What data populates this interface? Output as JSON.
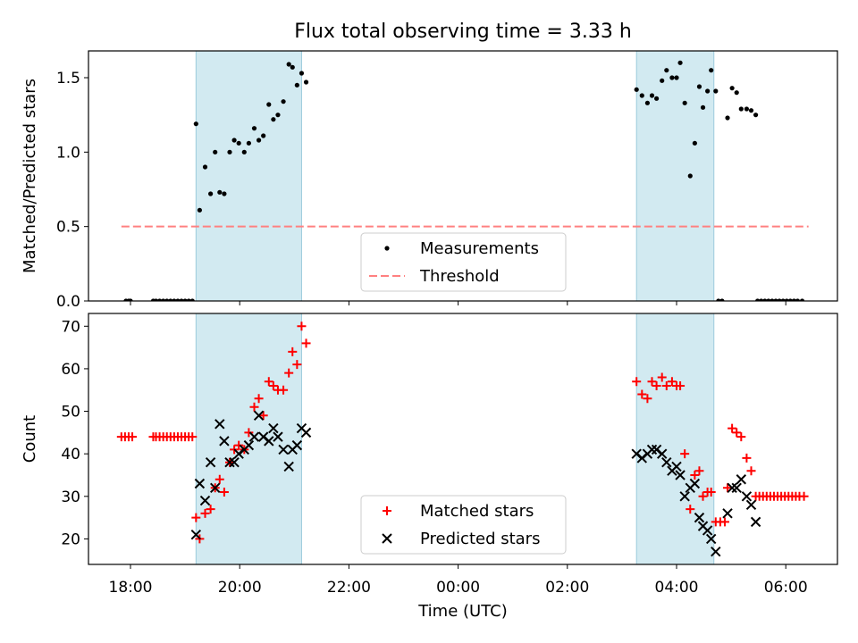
{
  "title": "Flux total observing time = 3.33 h",
  "xlabel": "Time (UTC)",
  "chart_data": [
    {
      "type": "scatter",
      "ylabel": "Matched/Predicted stars",
      "ylim": [
        0,
        1.68
      ],
      "yticks": [
        0.0,
        0.5,
        1.0,
        1.5
      ],
      "ytick_labels": [
        "0.0",
        "0.5",
        "1.0",
        "1.5"
      ],
      "shaded_intervals": [
        [
          "19:12",
          "21:08"
        ],
        [
          "03:16",
          "04:41"
        ]
      ],
      "series": [
        {
          "name": "Measurements",
          "marker": "dot",
          "color": "#000000",
          "points": [
            [
              "17:55",
              0
            ],
            [
              "17:58",
              0
            ],
            [
              "18:00",
              0
            ],
            [
              "18:25",
              0
            ],
            [
              "18:28",
              0
            ],
            [
              "18:32",
              0
            ],
            [
              "18:36",
              0
            ],
            [
              "18:40",
              0
            ],
            [
              "18:44",
              0
            ],
            [
              "18:48",
              0
            ],
            [
              "18:52",
              0
            ],
            [
              "18:56",
              0
            ],
            [
              "19:00",
              0
            ],
            [
              "19:04",
              0
            ],
            [
              "19:08",
              0
            ],
            [
              "19:12",
              1.19
            ],
            [
              "19:16",
              0.61
            ],
            [
              "19:22",
              0.9
            ],
            [
              "19:28",
              0.72
            ],
            [
              "19:33",
              1.0
            ],
            [
              "19:38",
              0.73
            ],
            [
              "19:43",
              0.72
            ],
            [
              "19:49",
              1.0
            ],
            [
              "19:54",
              1.08
            ],
            [
              "19:59",
              1.06
            ],
            [
              "20:05",
              1.0
            ],
            [
              "20:10",
              1.06
            ],
            [
              "20:16",
              1.16
            ],
            [
              "20:21",
              1.08
            ],
            [
              "20:26",
              1.11
            ],
            [
              "20:32",
              1.32
            ],
            [
              "20:37",
              1.22
            ],
            [
              "20:42",
              1.25
            ],
            [
              "20:48",
              1.34
            ],
            [
              "20:54",
              1.59
            ],
            [
              "20:58",
              1.57
            ],
            [
              "21:03",
              1.45
            ],
            [
              "21:08",
              1.53
            ],
            [
              "21:13",
              1.47
            ],
            [
              "03:16",
              1.42
            ],
            [
              "03:22",
              1.38
            ],
            [
              "03:28",
              1.33
            ],
            [
              "03:33",
              1.38
            ],
            [
              "03:38",
              1.36
            ],
            [
              "03:44",
              1.48
            ],
            [
              "03:49",
              1.55
            ],
            [
              "03:55",
              1.5
            ],
            [
              "04:00",
              1.5
            ],
            [
              "04:04",
              1.6
            ],
            [
              "04:09",
              1.33
            ],
            [
              "04:15",
              0.84
            ],
            [
              "04:20",
              1.06
            ],
            [
              "04:25",
              1.44
            ],
            [
              "04:29",
              1.3
            ],
            [
              "04:34",
              1.41
            ],
            [
              "04:38",
              1.55
            ],
            [
              "04:43",
              1.41
            ],
            [
              "04:46",
              0
            ],
            [
              "04:50",
              0
            ],
            [
              "04:56",
              1.23
            ],
            [
              "05:01",
              1.43
            ],
            [
              "05:06",
              1.4
            ],
            [
              "05:11",
              1.29
            ],
            [
              "05:17",
              1.29
            ],
            [
              "05:22",
              1.28
            ],
            [
              "05:27",
              1.25
            ],
            [
              "05:29",
              0
            ],
            [
              "05:33",
              0
            ],
            [
              "05:37",
              0
            ],
            [
              "05:41",
              0
            ],
            [
              "05:45",
              0
            ],
            [
              "05:49",
              0
            ],
            [
              "05:53",
              0
            ],
            [
              "05:57",
              0
            ],
            [
              "06:01",
              0
            ],
            [
              "06:05",
              0
            ],
            [
              "06:09",
              0
            ],
            [
              "06:13",
              0
            ],
            [
              "06:18",
              0
            ]
          ]
        },
        {
          "name": "Threshold",
          "marker": "dashed-line",
          "color": "#ff8080",
          "points": [
            [
              "17:50",
              0.5
            ],
            [
              "06:25",
              0.5
            ]
          ]
        }
      ],
      "legend": "lower-center"
    },
    {
      "type": "scatter",
      "ylabel": "Count",
      "ylim": [
        14,
        73
      ],
      "yticks": [
        20,
        30,
        40,
        50,
        60,
        70
      ],
      "ytick_labels": [
        "20",
        "30",
        "40",
        "50",
        "60",
        "70"
      ],
      "xticks": [
        "18:00",
        "20:00",
        "22:00",
        "00:00",
        "02:00",
        "04:00",
        "06:00"
      ],
      "shaded_intervals": [
        [
          "19:12",
          "21:08"
        ],
        [
          "03:16",
          "04:41"
        ]
      ],
      "series": [
        {
          "name": "Matched stars",
          "marker": "plus",
          "color": "#ff0000",
          "points": [
            [
              "17:50",
              44
            ],
            [
              "17:54",
              44
            ],
            [
              "17:58",
              44
            ],
            [
              "18:02",
              44
            ],
            [
              "18:25",
              44
            ],
            [
              "18:28",
              44
            ],
            [
              "18:32",
              44
            ],
            [
              "18:36",
              44
            ],
            [
              "18:40",
              44
            ],
            [
              "18:44",
              44
            ],
            [
              "18:48",
              44
            ],
            [
              "18:52",
              44
            ],
            [
              "18:56",
              44
            ],
            [
              "19:00",
              44
            ],
            [
              "19:04",
              44
            ],
            [
              "19:08",
              44
            ],
            [
              "19:12",
              25
            ],
            [
              "19:16",
              20
            ],
            [
              "19:22",
              26
            ],
            [
              "19:28",
              27
            ],
            [
              "19:33",
              32
            ],
            [
              "19:38",
              34
            ],
            [
              "19:43",
              31
            ],
            [
              "19:49",
              38
            ],
            [
              "19:54",
              41
            ],
            [
              "19:59",
              42
            ],
            [
              "20:05",
              41
            ],
            [
              "20:10",
              45
            ],
            [
              "20:16",
              51
            ],
            [
              "20:21",
              53
            ],
            [
              "20:26",
              49
            ],
            [
              "20:32",
              57
            ],
            [
              "20:37",
              56
            ],
            [
              "20:42",
              55
            ],
            [
              "20:48",
              55
            ],
            [
              "20:54",
              59
            ],
            [
              "20:58",
              64
            ],
            [
              "21:03",
              61
            ],
            [
              "21:08",
              70
            ],
            [
              "21:13",
              66
            ],
            [
              "03:16",
              57
            ],
            [
              "03:22",
              54
            ],
            [
              "03:28",
              53
            ],
            [
              "03:33",
              57
            ],
            [
              "03:38",
              56
            ],
            [
              "03:44",
              58
            ],
            [
              "03:49",
              56
            ],
            [
              "03:55",
              57
            ],
            [
              "04:00",
              56
            ],
            [
              "04:04",
              56
            ],
            [
              "04:09",
              40
            ],
            [
              "04:15",
              27
            ],
            [
              "04:20",
              35
            ],
            [
              "04:25",
              36
            ],
            [
              "04:29",
              30
            ],
            [
              "04:34",
              31
            ],
            [
              "04:38",
              31
            ],
            [
              "04:43",
              24
            ],
            [
              "04:48",
              24
            ],
            [
              "04:53",
              24
            ],
            [
              "04:56",
              32
            ],
            [
              "05:01",
              46
            ],
            [
              "05:06",
              45
            ],
            [
              "05:11",
              44
            ],
            [
              "05:17",
              39
            ],
            [
              "05:22",
              36
            ],
            [
              "05:27",
              30
            ],
            [
              "05:31",
              30
            ],
            [
              "05:35",
              30
            ],
            [
              "05:39",
              30
            ],
            [
              "05:43",
              30
            ],
            [
              "05:47",
              30
            ],
            [
              "05:51",
              30
            ],
            [
              "05:55",
              30
            ],
            [
              "05:59",
              30
            ],
            [
              "06:03",
              30
            ],
            [
              "06:07",
              30
            ],
            [
              "06:11",
              30
            ],
            [
              "06:15",
              30
            ],
            [
              "06:20",
              30
            ]
          ]
        },
        {
          "name": "Predicted stars",
          "marker": "x",
          "color": "#000000",
          "points": [
            [
              "19:12",
              21
            ],
            [
              "19:16",
              33
            ],
            [
              "19:22",
              29
            ],
            [
              "19:28",
              38
            ],
            [
              "19:33",
              32
            ],
            [
              "19:38",
              47
            ],
            [
              "19:43",
              43
            ],
            [
              "19:49",
              38
            ],
            [
              "19:54",
              38
            ],
            [
              "19:59",
              40
            ],
            [
              "20:05",
              41
            ],
            [
              "20:10",
              42
            ],
            [
              "20:16",
              44
            ],
            [
              "20:21",
              49
            ],
            [
              "20:26",
              44
            ],
            [
              "20:32",
              43
            ],
            [
              "20:37",
              46
            ],
            [
              "20:42",
              44
            ],
            [
              "20:48",
              41
            ],
            [
              "20:54",
              37
            ],
            [
              "20:58",
              41
            ],
            [
              "21:03",
              42
            ],
            [
              "21:08",
              46
            ],
            [
              "21:13",
              45
            ],
            [
              "03:16",
              40
            ],
            [
              "03:22",
              39
            ],
            [
              "03:28",
              40
            ],
            [
              "03:33",
              41
            ],
            [
              "03:38",
              41
            ],
            [
              "03:44",
              40
            ],
            [
              "03:49",
              38
            ],
            [
              "03:55",
              36
            ],
            [
              "04:00",
              37
            ],
            [
              "04:04",
              35
            ],
            [
              "04:09",
              30
            ],
            [
              "04:15",
              32
            ],
            [
              "04:20",
              33
            ],
            [
              "04:25",
              25
            ],
            [
              "04:29",
              23
            ],
            [
              "04:34",
              22
            ],
            [
              "04:38",
              20
            ],
            [
              "04:43",
              17
            ],
            [
              "04:56",
              26
            ],
            [
              "05:01",
              32
            ],
            [
              "05:06",
              32
            ],
            [
              "05:11",
              34
            ],
            [
              "05:17",
              30
            ],
            [
              "05:22",
              28
            ],
            [
              "05:27",
              24
            ]
          ]
        }
      ],
      "legend": "lower-center"
    }
  ]
}
